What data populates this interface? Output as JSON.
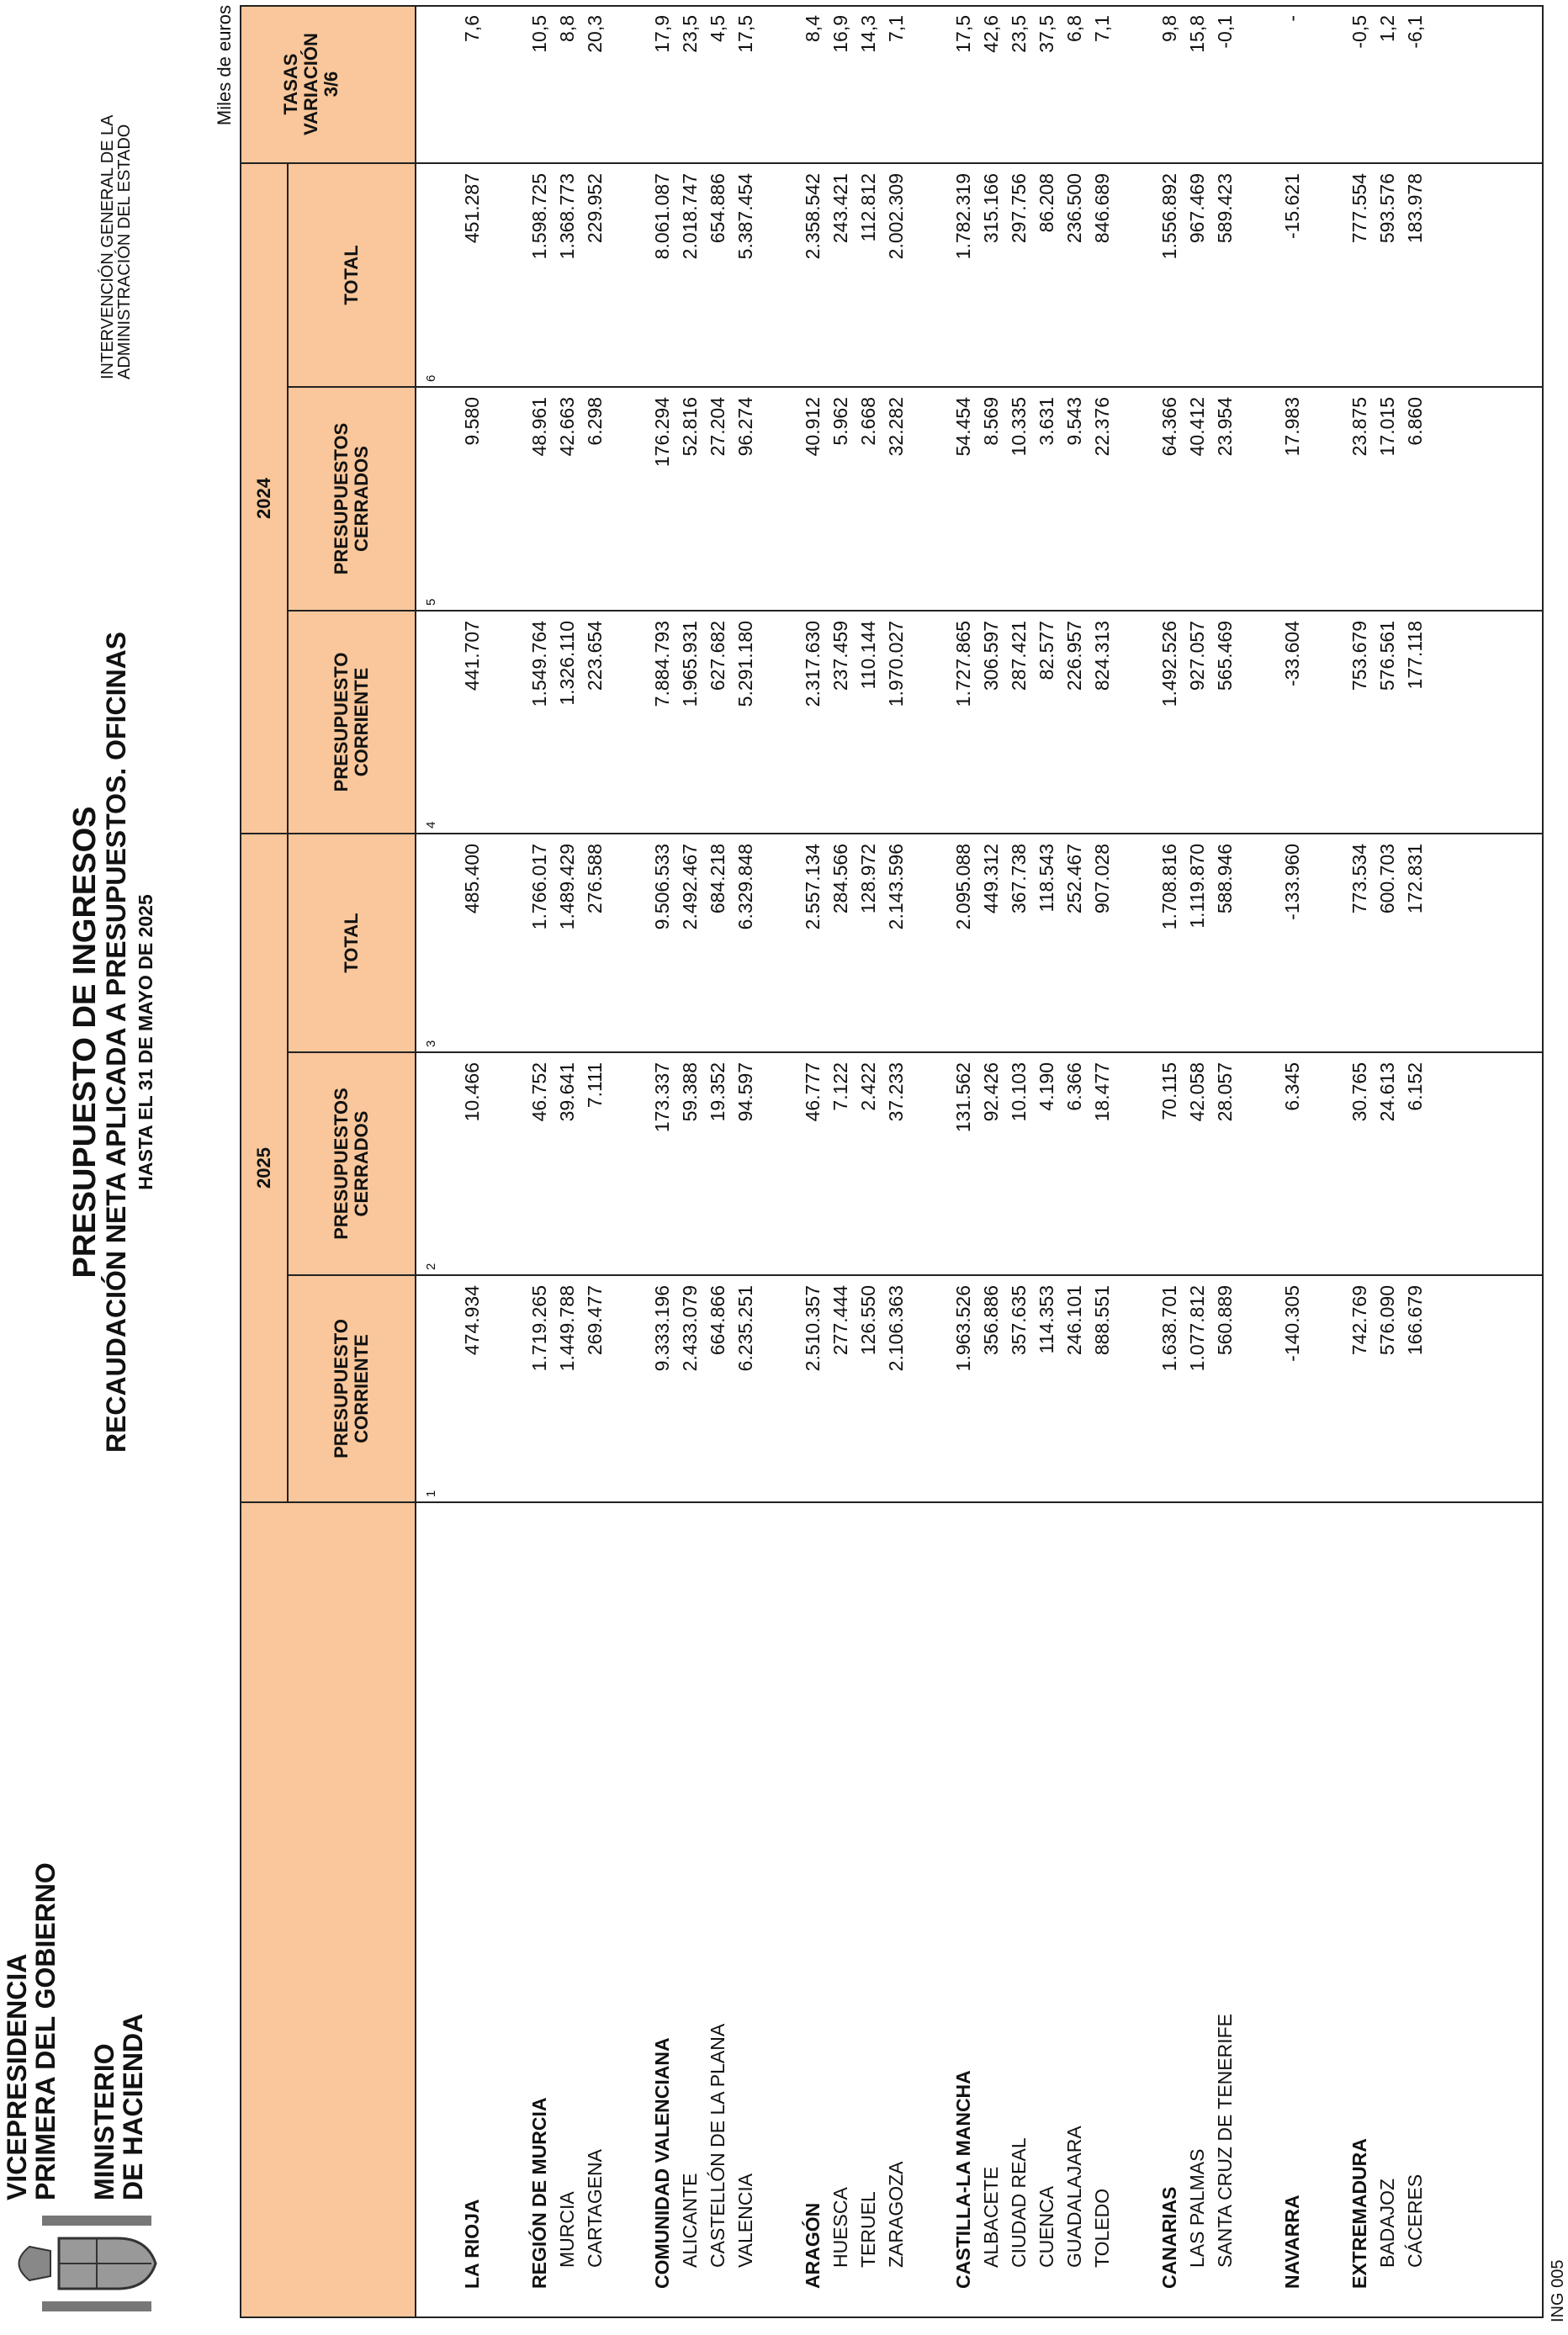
{
  "header": {
    "left": [
      "VICEPRESIDENCIA",
      "PRIMERA DEL GOBIERNO"
    ],
    "ministry": [
      "MINISTERIO",
      "DE HACIENDA"
    ],
    "right": [
      "INTERVENCIÓN GENERAL DE LA",
      "ADMINISTRACIÓN DEL ESTADO"
    ],
    "title": "PRESUPUESTO DE INGRESOS",
    "subtitle": "RECAUDACIÓN NETA APLICADA A PRESUPUESTOS. OFICINAS",
    "date": "HASTA EL 31 DE MAYO DE 2025",
    "units": "Miles de euros"
  },
  "table": {
    "years": [
      "2025",
      "2024"
    ],
    "columns": [
      [
        "PRESUPUESTO",
        "CORRIENTE"
      ],
      [
        "PRESUPUESTOS",
        "CERRADOS"
      ],
      [
        "TOTAL"
      ],
      [
        "PRESUPUESTO",
        "CORRIENTE"
      ],
      [
        "PRESUPUESTOS",
        "CERRADOS"
      ],
      [
        "TOTAL"
      ]
    ],
    "column_numbers": [
      "1",
      "2",
      "3",
      "4",
      "5",
      "6"
    ],
    "rate_header": [
      "TASAS",
      "VARIACIÓN",
      "3/6"
    ],
    "groups": [
      {
        "name": "LA RIOJA",
        "values": [
          "474.934",
          "10.466",
          "485.400",
          "441.707",
          "9.580",
          "451.287",
          "7,6"
        ],
        "provinces": []
      },
      {
        "name": "REGIÓN DE MURCIA",
        "values": [
          "1.719.265",
          "46.752",
          "1.766.017",
          "1.549.764",
          "48.961",
          "1.598.725",
          "10,5"
        ],
        "provinces": [
          {
            "name": "MURCIA",
            "values": [
              "1.449.788",
              "39.641",
              "1.489.429",
              "1.326.110",
              "42.663",
              "1.368.773",
              "8,8"
            ]
          },
          {
            "name": "CARTAGENA",
            "values": [
              "269.477",
              "7.111",
              "276.588",
              "223.654",
              "6.298",
              "229.952",
              "20,3"
            ]
          }
        ]
      },
      {
        "name": "COMUNIDAD VALENCIANA",
        "values": [
          "9.333.196",
          "173.337",
          "9.506.533",
          "7.884.793",
          "176.294",
          "8.061.087",
          "17,9"
        ],
        "provinces": [
          {
            "name": "ALICANTE",
            "values": [
              "2.433.079",
              "59.388",
              "2.492.467",
              "1.965.931",
              "52.816",
              "2.018.747",
              "23,5"
            ]
          },
          {
            "name": "CASTELLÓN DE LA PLANA",
            "values": [
              "664.866",
              "19.352",
              "684.218",
              "627.682",
              "27.204",
              "654.886",
              "4,5"
            ]
          },
          {
            "name": "VALENCIA",
            "values": [
              "6.235.251",
              "94.597",
              "6.329.848",
              "5.291.180",
              "96.274",
              "5.387.454",
              "17,5"
            ]
          }
        ]
      },
      {
        "name": "ARAGÓN",
        "values": [
          "2.510.357",
          "46.777",
          "2.557.134",
          "2.317.630",
          "40.912",
          "2.358.542",
          "8,4"
        ],
        "provinces": [
          {
            "name": "HUESCA",
            "values": [
              "277.444",
              "7.122",
              "284.566",
              "237.459",
              "5.962",
              "243.421",
              "16,9"
            ]
          },
          {
            "name": "TERUEL",
            "values": [
              "126.550",
              "2.422",
              "128.972",
              "110.144",
              "2.668",
              "112.812",
              "14,3"
            ]
          },
          {
            "name": "ZARAGOZA",
            "values": [
              "2.106.363",
              "37.233",
              "2.143.596",
              "1.970.027",
              "32.282",
              "2.002.309",
              "7,1"
            ]
          }
        ]
      },
      {
        "name": "CASTILLA-LA MANCHA",
        "values": [
          "1.963.526",
          "131.562",
          "2.095.088",
          "1.727.865",
          "54.454",
          "1.782.319",
          "17,5"
        ],
        "provinces": [
          {
            "name": "ALBACETE",
            "values": [
              "356.886",
              "92.426",
              "449.312",
              "306.597",
              "8.569",
              "315.166",
              "42,6"
            ]
          },
          {
            "name": "CIUDAD REAL",
            "values": [
              "357.635",
              "10.103",
              "367.738",
              "287.421",
              "10.335",
              "297.756",
              "23,5"
            ]
          },
          {
            "name": "CUENCA",
            "values": [
              "114.353",
              "4.190",
              "118.543",
              "82.577",
              "3.631",
              "86.208",
              "37,5"
            ]
          },
          {
            "name": "GUADALAJARA",
            "values": [
              "246.101",
              "6.366",
              "252.467",
              "226.957",
              "9.543",
              "236.500",
              "6,8"
            ]
          },
          {
            "name": "TOLEDO",
            "values": [
              "888.551",
              "18.477",
              "907.028",
              "824.313",
              "22.376",
              "846.689",
              "7,1"
            ]
          }
        ]
      },
      {
        "name": "CANARIAS",
        "values": [
          "1.638.701",
          "70.115",
          "1.708.816",
          "1.492.526",
          "64.366",
          "1.556.892",
          "9,8"
        ],
        "provinces": [
          {
            "name": "LAS PALMAS",
            "values": [
              "1.077.812",
              "42.058",
              "1.119.870",
              "927.057",
              "40.412",
              "967.469",
              "15,8"
            ]
          },
          {
            "name": "SANTA CRUZ DE TENERIFE",
            "values": [
              "560.889",
              "28.057",
              "588.946",
              "565.469",
              "23.954",
              "589.423",
              "-0,1"
            ]
          }
        ]
      },
      {
        "name": "NAVARRA",
        "values": [
          "-140.305",
          "6.345",
          "-133.960",
          "-33.604",
          "17.983",
          "-15.621",
          "-"
        ],
        "provinces": []
      },
      {
        "name": "EXTREMADURA",
        "values": [
          "742.769",
          "30.765",
          "773.534",
          "753.679",
          "23.875",
          "777.554",
          "-0,5"
        ],
        "provinces": [
          {
            "name": "BADAJOZ",
            "values": [
              "576.090",
              "24.613",
              "600.703",
              "576.561",
              "17.015",
              "593.576",
              "1,2"
            ]
          },
          {
            "name": "CÁCERES",
            "values": [
              "166.679",
              "6.152",
              "172.831",
              "177.118",
              "6.860",
              "183.978",
              "-6,1"
            ]
          }
        ]
      }
    ]
  },
  "footer": "ING 005"
}
